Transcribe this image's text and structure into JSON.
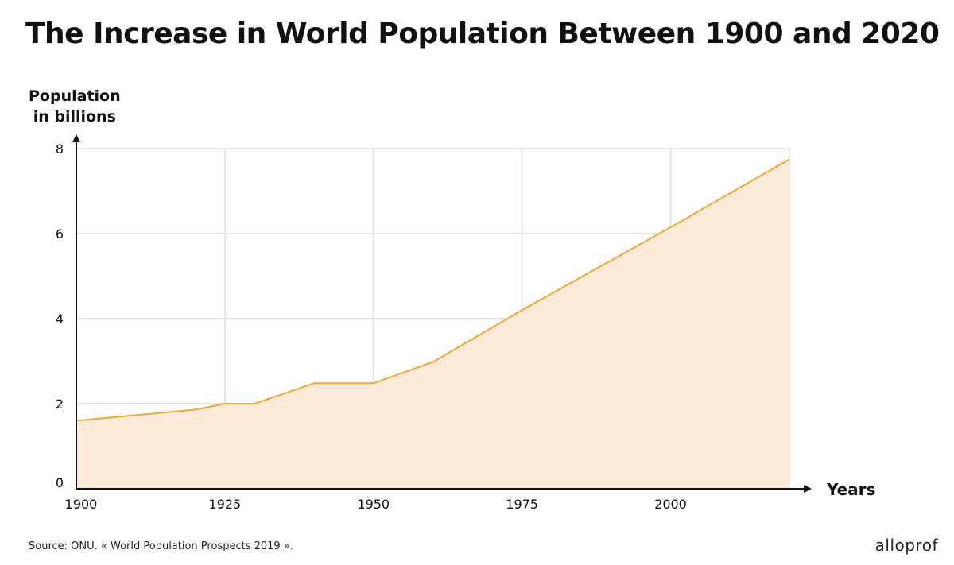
{
  "title": "The Increase in World Population Between 1900 and 2020",
  "source": "Source: ONU. « World Population Prospects 2019 ».",
  "brand": "alloprof",
  "colors": {
    "line": "#f5a535",
    "fill": "#fcebd8",
    "grid": "#e6e2dc",
    "axis": "#111111"
  },
  "chart_data": {
    "type": "area",
    "title": "The Increase in World Population Between 1900 and 2020",
    "xlabel": "Years",
    "ylabel": [
      "Population",
      "in billions"
    ],
    "xlim": [
      1900,
      2020
    ],
    "ylim": [
      0,
      8
    ],
    "xticks": [
      1900,
      1925,
      1950,
      1975,
      2000
    ],
    "yticks": [
      0,
      2,
      4,
      6,
      8
    ],
    "grid": true,
    "x": [
      1900,
      1920,
      1925,
      1930,
      1940,
      1950,
      1960,
      1975,
      2000,
      2020
    ],
    "series": [
      {
        "values": [
          1.6,
          1.86,
          2.0,
          2.0,
          2.48,
          2.48,
          2.98,
          4.2,
          6.15,
          7.75
        ]
      }
    ]
  }
}
